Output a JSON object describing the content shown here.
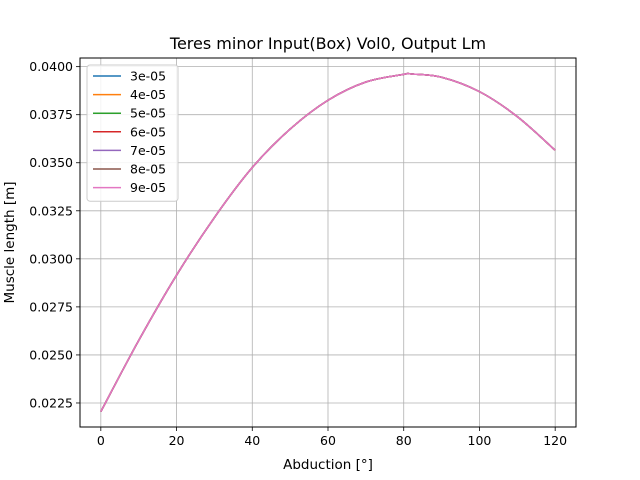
{
  "chart_data": {
    "type": "line",
    "title": "Teres minor Input(Box) Vol0, Output Lm",
    "xlabel": "Abduction [°]",
    "ylabel": "Muscle length [m]",
    "xlim": [
      -5.5,
      125.5
    ],
    "ylim": [
      0.02125,
      0.04045
    ],
    "xticks": [
      0,
      20,
      40,
      60,
      80,
      100,
      120
    ],
    "xtick_labels": [
      "0",
      "20",
      "40",
      "60",
      "80",
      "100",
      "120"
    ],
    "yticks": [
      0.0225,
      0.025,
      0.0275,
      0.03,
      0.0325,
      0.035,
      0.0375,
      0.04
    ],
    "ytick_labels": [
      "0.0225",
      "0.0250",
      "0.0275",
      "0.0300",
      "0.0325",
      "0.0350",
      "0.0375",
      "0.0400"
    ],
    "grid": true,
    "legend_position": "top-left",
    "x": [
      0,
      10,
      20,
      30,
      40,
      50,
      60,
      70,
      80,
      82,
      90,
      100,
      110,
      120
    ],
    "series": [
      {
        "name": "3e-05",
        "color": "#1f77b4",
        "values": [
          0.02205,
          0.02575,
          0.02915,
          0.03215,
          0.03475,
          0.03675,
          0.03825,
          0.0392,
          0.0396,
          0.03962,
          0.03945,
          0.0387,
          0.0374,
          0.03565
        ]
      },
      {
        "name": "4e-05",
        "color": "#ff7f0e",
        "values": [
          0.02205,
          0.02575,
          0.02915,
          0.03215,
          0.03475,
          0.03675,
          0.03825,
          0.0392,
          0.0396,
          0.03962,
          0.03945,
          0.0387,
          0.0374,
          0.03565
        ]
      },
      {
        "name": "5e-05",
        "color": "#2ca02c",
        "values": [
          0.02205,
          0.02575,
          0.02915,
          0.03215,
          0.03475,
          0.03675,
          0.03825,
          0.0392,
          0.0396,
          0.03962,
          0.03945,
          0.0387,
          0.0374,
          0.03565
        ]
      },
      {
        "name": "6e-05",
        "color": "#d62728",
        "values": [
          0.02205,
          0.02575,
          0.02915,
          0.03215,
          0.03475,
          0.03675,
          0.03825,
          0.0392,
          0.0396,
          0.03962,
          0.03945,
          0.0387,
          0.0374,
          0.03565
        ]
      },
      {
        "name": "7e-05",
        "color": "#9467bd",
        "values": [
          0.02205,
          0.02575,
          0.02915,
          0.03215,
          0.03475,
          0.03675,
          0.03825,
          0.0392,
          0.0396,
          0.03962,
          0.03945,
          0.0387,
          0.0374,
          0.03565
        ]
      },
      {
        "name": "8e-05",
        "color": "#8c564b",
        "values": [
          0.02205,
          0.02575,
          0.02915,
          0.03215,
          0.03475,
          0.03675,
          0.03825,
          0.0392,
          0.0396,
          0.03962,
          0.03945,
          0.0387,
          0.0374,
          0.03565
        ]
      },
      {
        "name": "9e-05",
        "color": "#e377c2",
        "values": [
          0.02205,
          0.02575,
          0.02915,
          0.03215,
          0.03475,
          0.03675,
          0.03825,
          0.0392,
          0.0396,
          0.03962,
          0.03945,
          0.0387,
          0.0374,
          0.03565
        ]
      }
    ]
  }
}
